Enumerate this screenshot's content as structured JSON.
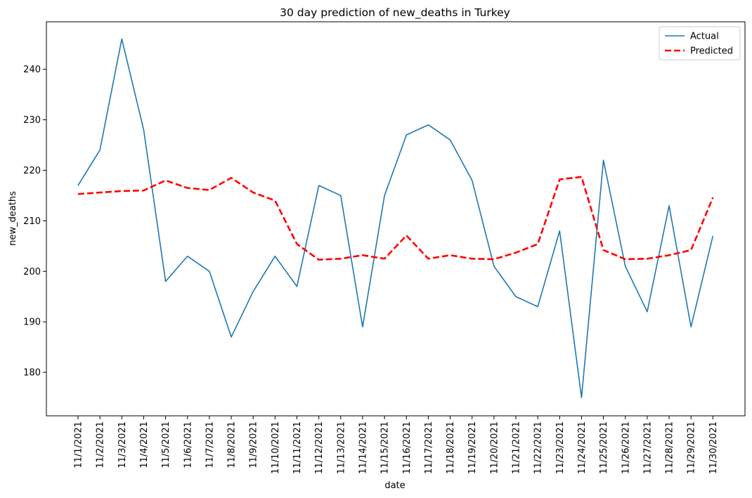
{
  "chart_data": {
    "type": "line",
    "title": "30 day prediction of new_deaths in Turkey",
    "xlabel": "date",
    "ylabel": "new_deaths",
    "categories": [
      "11/1/2021",
      "11/2/2021",
      "11/3/2021",
      "11/4/2021",
      "11/5/2021",
      "11/6/2021",
      "11/7/2021",
      "11/8/2021",
      "11/9/2021",
      "11/10/2021",
      "11/11/2021",
      "11/12/2021",
      "11/13/2021",
      "11/14/2021",
      "11/15/2021",
      "11/16/2021",
      "11/17/2021",
      "11/18/2021",
      "11/19/2021",
      "11/20/2021",
      "11/21/2021",
      "11/22/2021",
      "11/23/2021",
      "11/24/2021",
      "11/25/2021",
      "11/26/2021",
      "11/27/2021",
      "11/28/2021",
      "11/29/2021",
      "11/30/2021"
    ],
    "yticks": [
      180,
      190,
      200,
      210,
      220,
      230,
      240
    ],
    "ylim": [
      171.4,
      249.4
    ],
    "grid": false,
    "legend_position": "top-right",
    "series": [
      {
        "name": "Actual",
        "color": "#1f77b4",
        "style": "solid",
        "values": [
          217,
          224,
          246,
          228,
          198,
          203,
          200,
          187,
          196,
          203,
          197,
          217,
          215,
          189,
          215,
          227,
          229,
          226,
          218,
          201,
          195,
          193,
          208,
          175,
          222,
          201,
          192,
          213,
          189,
          207
        ]
      },
      {
        "name": "Predicted",
        "color": "#ff0000",
        "style": "dashed",
        "values": [
          215.3,
          215.6,
          215.9,
          216.0,
          218.0,
          216.5,
          216.1,
          218.5,
          215.6,
          214.0,
          205.4,
          202.3,
          202.5,
          203.2,
          202.5,
          207.1,
          202.5,
          203.2,
          202.5,
          202.4,
          203.7,
          205.4,
          218.2,
          218.7,
          204.2,
          202.4,
          202.5,
          203.2,
          204.2,
          214.6
        ]
      }
    ]
  }
}
